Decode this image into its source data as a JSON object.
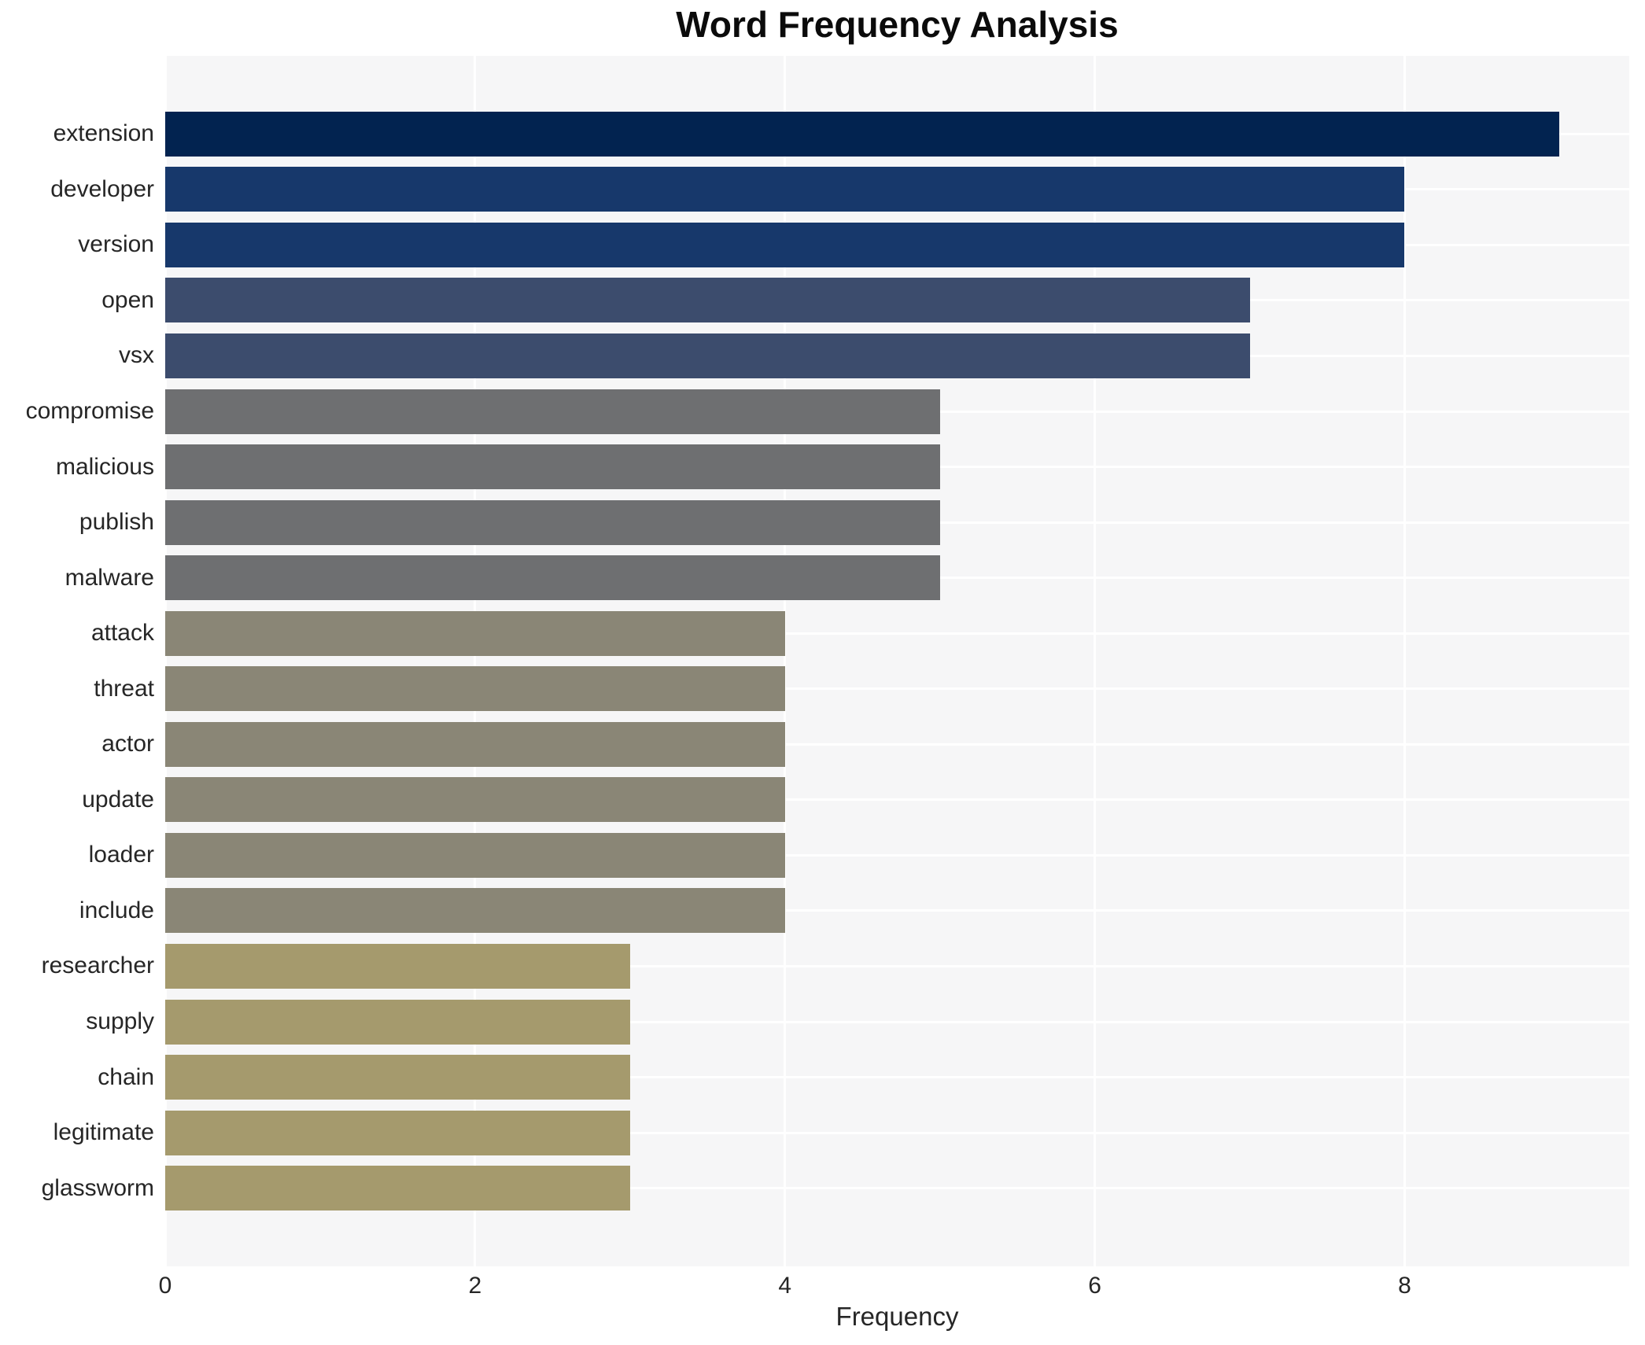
{
  "chart": {
    "title": "Word Frequency Analysis",
    "xlabel": "Frequency"
  },
  "chart_data": {
    "type": "bar",
    "orientation": "horizontal",
    "title": "Word Frequency Analysis",
    "xlabel": "Frequency",
    "ylabel": "",
    "categories": [
      "extension",
      "developer",
      "version",
      "open",
      "vsx",
      "compromise",
      "malicious",
      "publish",
      "malware",
      "attack",
      "threat",
      "actor",
      "update",
      "loader",
      "include",
      "researcher",
      "supply",
      "chain",
      "legitimate",
      "glassworm"
    ],
    "values": [
      9,
      8,
      8,
      7,
      7,
      5,
      5,
      5,
      5,
      4,
      4,
      4,
      4,
      4,
      4,
      3,
      3,
      3,
      3,
      3
    ],
    "bar_colors": [
      "#022350",
      "#17386b",
      "#17386b",
      "#3c4c6d",
      "#3c4c6d",
      "#6e6f71",
      "#6e6f71",
      "#6e6f71",
      "#6e6f71",
      "#8a8676",
      "#8a8676",
      "#8a8676",
      "#8a8676",
      "#8a8676",
      "#8a8676",
      "#a59a6d",
      "#a59a6d",
      "#a59a6d",
      "#a59a6d",
      "#a59a6d"
    ],
    "xlim": [
      0,
      9.45
    ],
    "xticks": [
      0,
      2,
      4,
      6,
      8
    ],
    "grid": true,
    "legend": "none",
    "plot_bg_color": "#f6f6f7",
    "grid_color": "#ffffff",
    "outer_bg_color": "#ffffff",
    "title_color": "#0b0b0b",
    "tick_label_color": "#262626"
  }
}
